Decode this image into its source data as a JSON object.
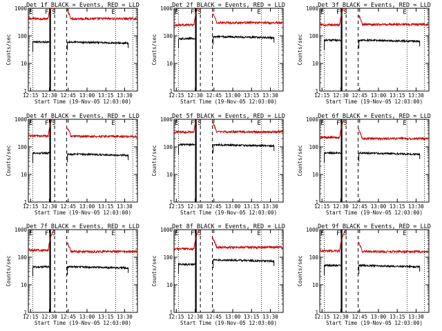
{
  "figure": {
    "background": "#ffffff"
  },
  "colors": {
    "events": "#000000",
    "lld": "#cc0000",
    "axis": "#000000"
  },
  "chart_data": [
    {
      "type": "line",
      "title": "Det 1f BLACK = Events, RED = LLD",
      "xlabel": "Start Time (19-Nov-05 12:03:00)",
      "ylabel": "Counts/sec",
      "xlim": [
        12.22,
        13.67
      ],
      "ylim": [
        1,
        1000
      ],
      "yscale": "log",
      "xticks": [
        "12:15",
        "12:30",
        "12:45",
        "13:00",
        "13:15",
        "13:30"
      ],
      "yticks": [
        "1",
        "10",
        "100",
        "1000"
      ],
      "markers": [
        "E",
        "F",
        "S",
        "E"
      ],
      "series": [
        {
          "name": "Events",
          "color": "#000000",
          "before": 60,
          "after": 60
        },
        {
          "name": "LLD",
          "color": "#cc0000",
          "before": 420,
          "after": 420
        }
      ]
    },
    {
      "type": "line",
      "title": "Det 2f BLACK = Events, RED = LLD",
      "xlabel": "Start Time (19-Nov-05 12:03:00)",
      "ylabel": "Counts/sec",
      "xlim": [
        12.22,
        13.67
      ],
      "ylim": [
        1,
        1000
      ],
      "yscale": "log",
      "xticks": [
        "12:15",
        "12:30",
        "12:45",
        "13:00",
        "13:15",
        "13:30"
      ],
      "yticks": [
        "1",
        "10",
        "100",
        "1000"
      ],
      "markers": [
        "E",
        "F",
        "S",
        "E"
      ],
      "series": [
        {
          "name": "Events",
          "color": "#000000",
          "before": 80,
          "after": 95
        },
        {
          "name": "LLD",
          "color": "#cc0000",
          "before": 250,
          "after": 300
        }
      ]
    },
    {
      "type": "line",
      "title": "Det 3f BLACK = Events, RED = LLD",
      "xlabel": "Start Time (19-Nov-05 12:03:00)",
      "ylabel": "Counts/sec",
      "xlim": [
        12.22,
        13.67
      ],
      "ylim": [
        1,
        1000
      ],
      "yscale": "log",
      "xticks": [
        "12:15",
        "12:30",
        "12:45",
        "13:00",
        "13:15",
        "13:30"
      ],
      "yticks": [
        "1",
        "10",
        "100",
        "1000"
      ],
      "markers": [
        "E",
        "F",
        "S",
        "E"
      ],
      "series": [
        {
          "name": "Events",
          "color": "#000000",
          "before": 70,
          "after": 70
        },
        {
          "name": "LLD",
          "color": "#cc0000",
          "before": 250,
          "after": 260
        }
      ]
    },
    {
      "type": "line",
      "title": "Det 4f BLACK = Events, RED = LLD",
      "xlabel": "Start Time (19-Nov-05 12:03:00)",
      "ylabel": "Counts/sec",
      "xlim": [
        12.22,
        13.67
      ],
      "ylim": [
        1,
        1000
      ],
      "yscale": "log",
      "xticks": [
        "12:15",
        "12:30",
        "12:45",
        "13:00",
        "13:15",
        "13:30"
      ],
      "yticks": [
        "1",
        "10",
        "100",
        "1000"
      ],
      "markers": [
        "E",
        "F",
        "S",
        "E"
      ],
      "series": [
        {
          "name": "Events",
          "color": "#000000",
          "before": 60,
          "after": 55
        },
        {
          "name": "LLD",
          "color": "#cc0000",
          "before": 250,
          "after": 240
        }
      ]
    },
    {
      "type": "line",
      "title": "Det 5f BLACK = Events, RED = LLD",
      "xlabel": "Start Time (19-Nov-05 12:03:00)",
      "ylabel": "Counts/sec",
      "xlim": [
        12.22,
        13.67
      ],
      "ylim": [
        1,
        1000
      ],
      "yscale": "log",
      "xticks": [
        "12:15",
        "12:30",
        "12:45",
        "13:00",
        "13:15",
        "13:30"
      ],
      "yticks": [
        "1",
        "10",
        "100",
        "1000"
      ],
      "markers": [
        "E",
        "F",
        "S",
        "E"
      ],
      "series": [
        {
          "name": "Events",
          "color": "#000000",
          "before": 120,
          "after": 120
        },
        {
          "name": "LLD",
          "color": "#cc0000",
          "before": 350,
          "after": 350
        }
      ]
    },
    {
      "type": "line",
      "title": "Det 6f BLACK = Events, RED = LLD",
      "xlabel": "Start Time (19-Nov-05 12:03:00)",
      "ylabel": "Counts/sec",
      "xlim": [
        12.22,
        13.67
      ],
      "ylim": [
        1,
        1000
      ],
      "yscale": "log",
      "xticks": [
        "12:15",
        "12:30",
        "12:45",
        "13:00",
        "13:15",
        "13:30"
      ],
      "yticks": [
        "1",
        "10",
        "100",
        "1000"
      ],
      "markers": [
        "E",
        "F",
        "S",
        "E"
      ],
      "series": [
        {
          "name": "Events",
          "color": "#000000",
          "before": 60,
          "after": 60
        },
        {
          "name": "LLD",
          "color": "#cc0000",
          "before": 220,
          "after": 200
        }
      ]
    },
    {
      "type": "line",
      "title": "Det 7f BLACK = Events, RED = LLD",
      "xlabel": "Start Time (19-Nov-05 12:03:00)",
      "ylabel": "Counts/sec",
      "xlim": [
        12.22,
        13.67
      ],
      "ylim": [
        1,
        1000
      ],
      "yscale": "log",
      "xticks": [
        "12:15",
        "12:30",
        "12:45",
        "13:00",
        "13:15",
        "13:30"
      ],
      "yticks": [
        "1",
        "10",
        "100",
        "1000"
      ],
      "markers": [
        "E",
        "F",
        "S",
        "E"
      ],
      "series": [
        {
          "name": "Events",
          "color": "#000000",
          "before": 45,
          "after": 45
        },
        {
          "name": "LLD",
          "color": "#cc0000",
          "before": 180,
          "after": 160
        }
      ]
    },
    {
      "type": "line",
      "title": "Det 8f BLACK = Events, RED = LLD",
      "xlabel": "Start Time (19-Nov-05 12:03:00)",
      "ylabel": "Counts/sec",
      "xlim": [
        12.22,
        13.67
      ],
      "ylim": [
        1,
        1000
      ],
      "yscale": "log",
      "xticks": [
        "12:15",
        "12:30",
        "12:45",
        "13:00",
        "13:15",
        "13:30"
      ],
      "yticks": [
        "1",
        "10",
        "100",
        "1000"
      ],
      "markers": [
        "E",
        "F",
        "S",
        "E"
      ],
      "series": [
        {
          "name": "Events",
          "color": "#000000",
          "before": 55,
          "after": 80
        },
        {
          "name": "LLD",
          "color": "#cc0000",
          "before": 200,
          "after": 230
        }
      ]
    },
    {
      "type": "line",
      "title": "Det 9f BLACK = Events, RED = LLD",
      "xlabel": "Start Time (19-Nov-05 12:03:00)",
      "ylabel": "Counts/sec",
      "xlim": [
        12.22,
        13.67
      ],
      "ylim": [
        1,
        1000
      ],
      "yscale": "log",
      "xticks": [
        "12:15",
        "12:30",
        "12:45",
        "13:00",
        "13:15",
        "13:30"
      ],
      "yticks": [
        "1",
        "10",
        "100",
        "1000"
      ],
      "markers": [
        "E",
        "F",
        "S",
        "E"
      ],
      "series": [
        {
          "name": "Events",
          "color": "#000000",
          "before": 50,
          "after": 50
        },
        {
          "name": "LLD",
          "color": "#cc0000",
          "before": 170,
          "after": 160
        }
      ]
    }
  ]
}
